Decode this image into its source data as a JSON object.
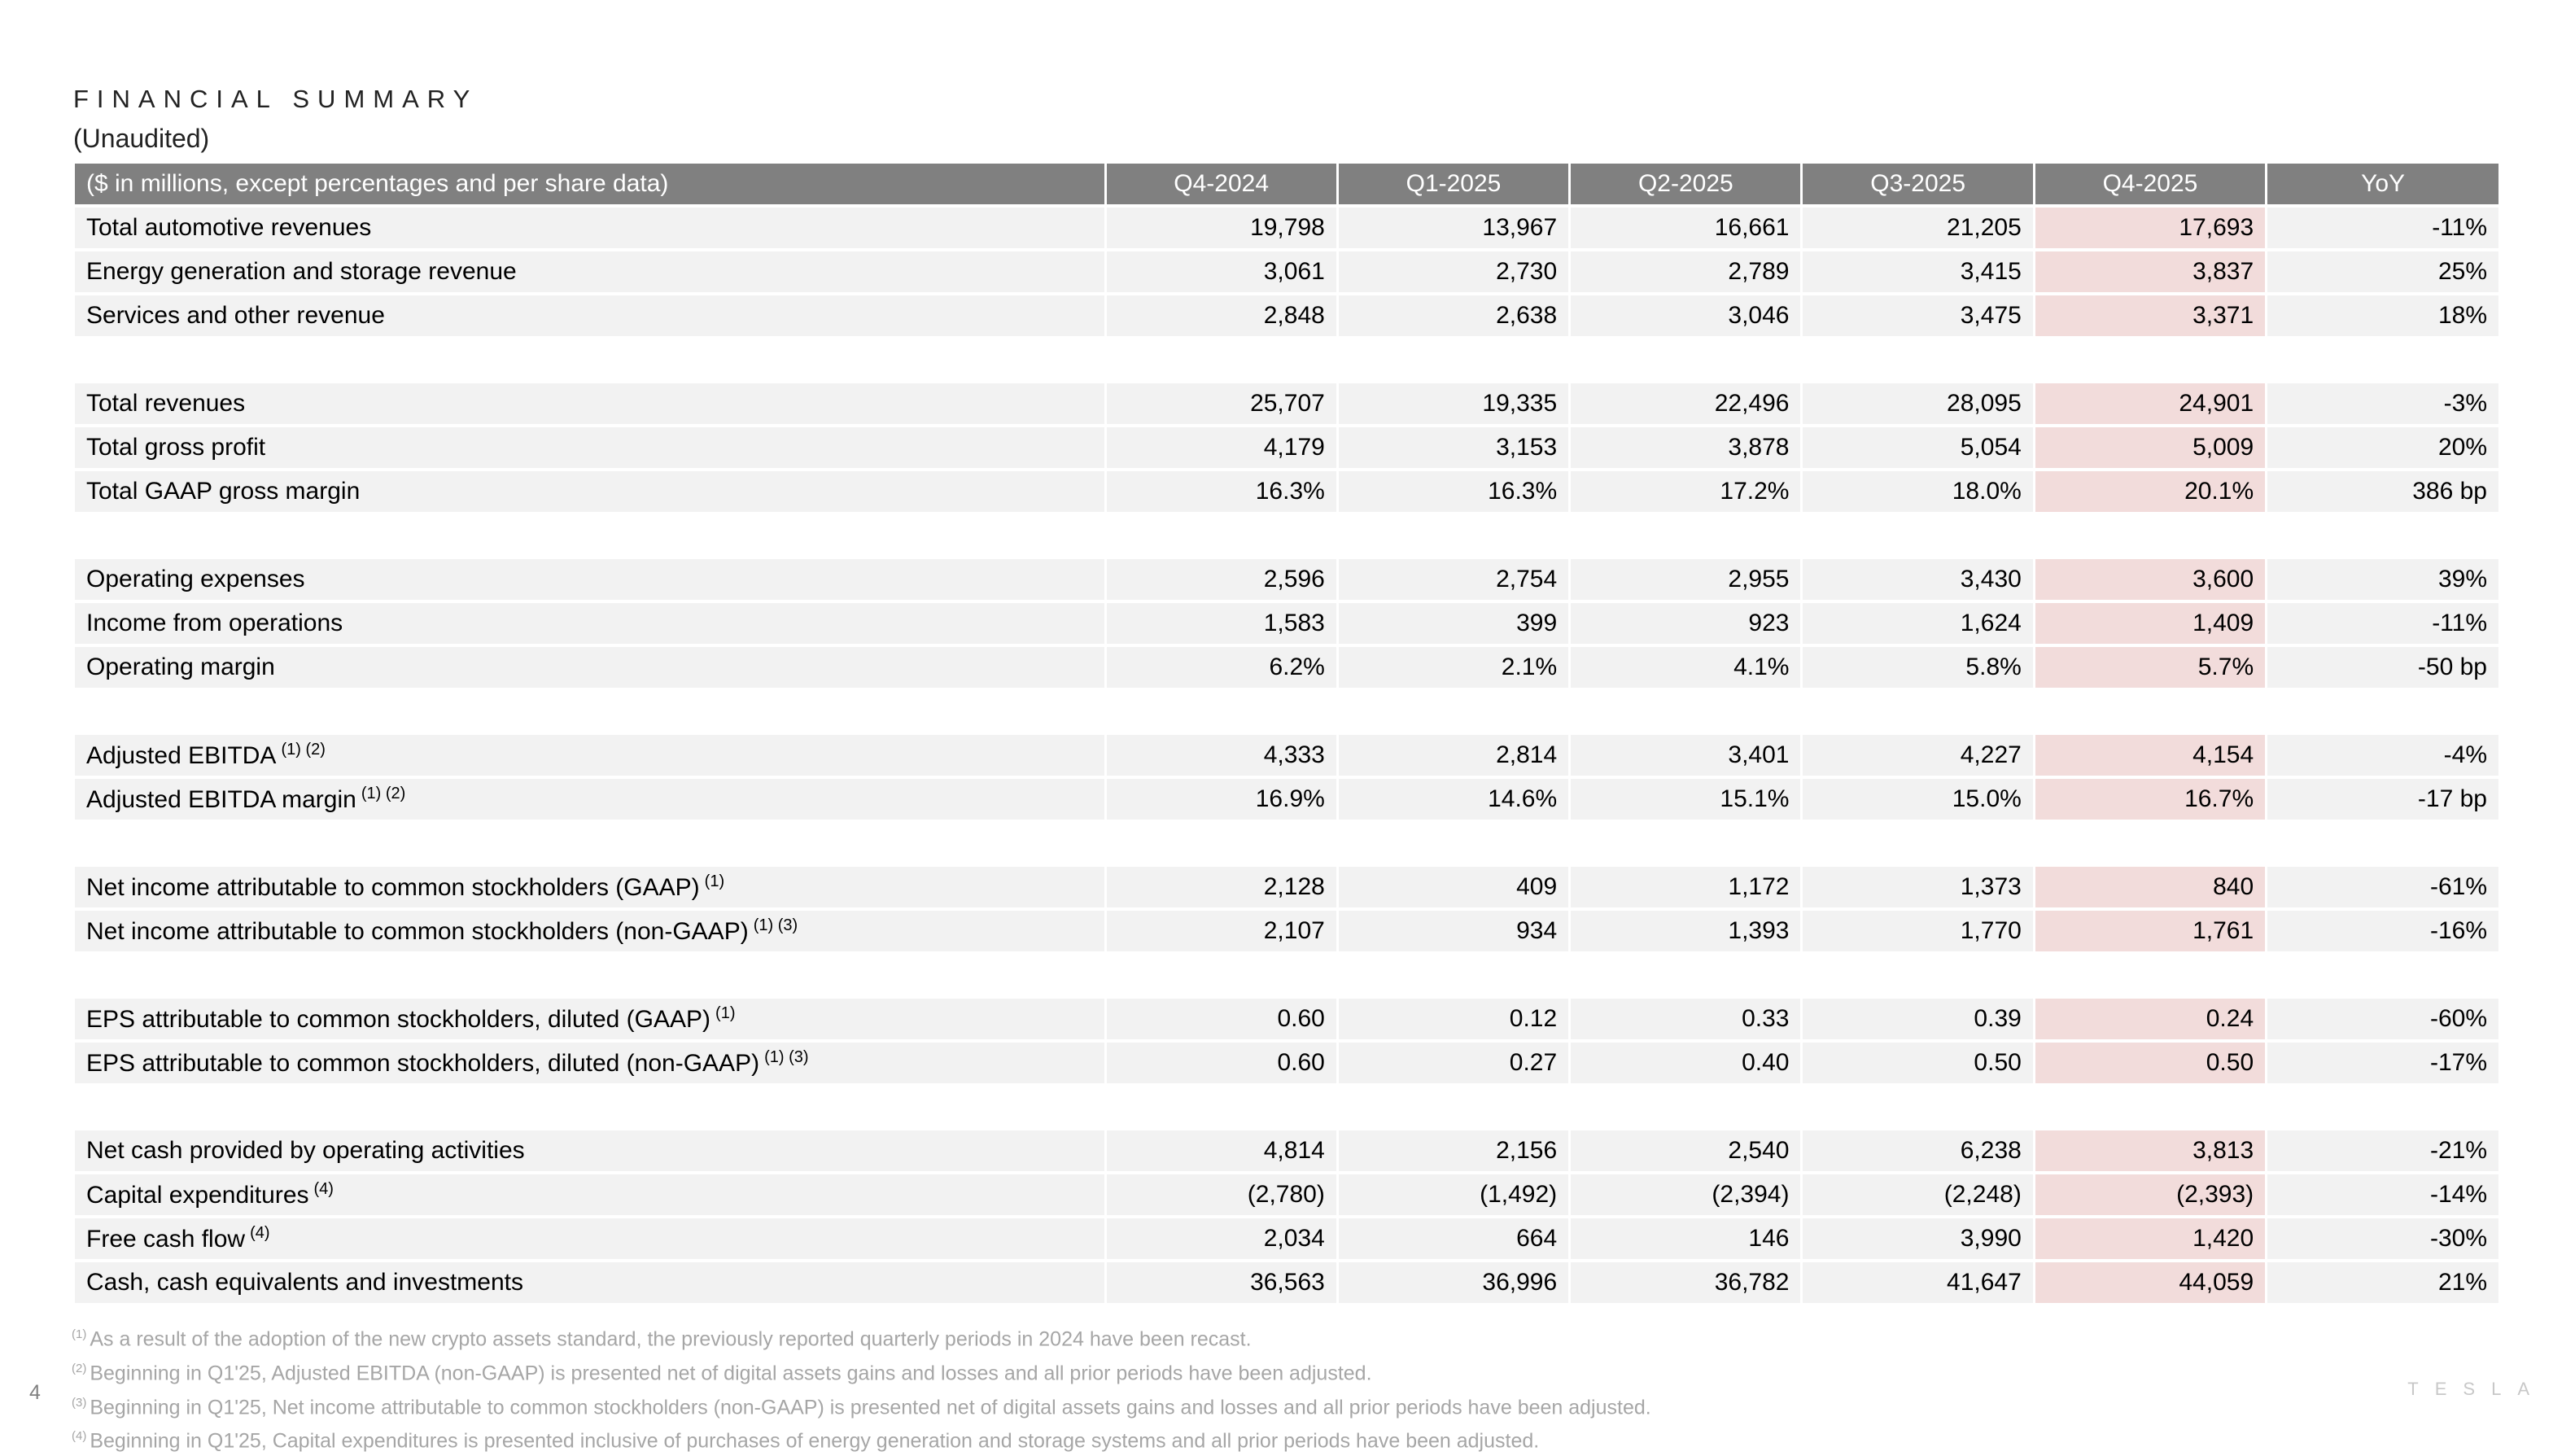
{
  "header": {
    "title": "FINANCIAL SUMMARY",
    "subtitle": "(Unaudited)"
  },
  "table": {
    "columns": [
      "($ in millions, except percentages and per share data)",
      "Q4-2024",
      "Q1-2025",
      "Q2-2025",
      "Q3-2025",
      "Q4-2025",
      "YoY"
    ],
    "groups": [
      [
        {
          "label": "Total automotive revenues",
          "notes": [],
          "values": [
            "19,798",
            "13,967",
            "16,661",
            "21,205",
            "17,693",
            "-11%"
          ]
        },
        {
          "label": "Energy generation and storage revenue",
          "notes": [],
          "values": [
            "3,061",
            "2,730",
            "2,789",
            "3,415",
            "3,837",
            "25%"
          ]
        },
        {
          "label": "Services and other revenue",
          "notes": [],
          "values": [
            "2,848",
            "2,638",
            "3,046",
            "3,475",
            "3,371",
            "18%"
          ]
        }
      ],
      [
        {
          "label": "Total revenues",
          "notes": [],
          "values": [
            "25,707",
            "19,335",
            "22,496",
            "28,095",
            "24,901",
            "-3%"
          ]
        },
        {
          "label": "Total gross profit",
          "notes": [],
          "values": [
            "4,179",
            "3,153",
            "3,878",
            "5,054",
            "5,009",
            "20%"
          ]
        },
        {
          "label": "Total GAAP gross margin",
          "notes": [],
          "values": [
            "16.3%",
            "16.3%",
            "17.2%",
            "18.0%",
            "20.1%",
            "386 bp"
          ]
        }
      ],
      [
        {
          "label": "Operating expenses",
          "notes": [],
          "values": [
            "2,596",
            "2,754",
            "2,955",
            "3,430",
            "3,600",
            "39%"
          ]
        },
        {
          "label": "Income from operations",
          "notes": [],
          "values": [
            "1,583",
            "399",
            "923",
            "1,624",
            "1,409",
            "-11%"
          ]
        },
        {
          "label": "Operating margin",
          "notes": [],
          "values": [
            "6.2%",
            "2.1%",
            "4.1%",
            "5.8%",
            "5.7%",
            "-50 bp"
          ]
        }
      ],
      [
        {
          "label": "Adjusted EBITDA",
          "notes": [
            "(1)",
            "(2)"
          ],
          "values": [
            "4,333",
            "2,814",
            "3,401",
            "4,227",
            "4,154",
            "-4%"
          ]
        },
        {
          "label": "Adjusted EBITDA margin",
          "notes": [
            "(1)",
            "(2)"
          ],
          "values": [
            "16.9%",
            "14.6%",
            "15.1%",
            "15.0%",
            "16.7%",
            "-17 bp"
          ]
        }
      ],
      [
        {
          "label": "Net income attributable to common stockholders (GAAP)",
          "notes": [
            "(1)"
          ],
          "values": [
            "2,128",
            "409",
            "1,172",
            "1,373",
            "840",
            "-61%"
          ]
        },
        {
          "label": "Net income attributable to common stockholders (non-GAAP)",
          "notes": [
            "(1)",
            "(3)"
          ],
          "values": [
            "2,107",
            "934",
            "1,393",
            "1,770",
            "1,761",
            "-16%"
          ]
        }
      ],
      [
        {
          "label": "EPS attributable to common stockholders, diluted (GAAP)",
          "notes": [
            "(1)"
          ],
          "values": [
            "0.60",
            "0.12",
            "0.33",
            "0.39",
            "0.24",
            "-60%"
          ]
        },
        {
          "label": "EPS attributable to common stockholders, diluted (non-GAAP)",
          "notes": [
            "(1)",
            "(3)"
          ],
          "values": [
            "0.60",
            "0.27",
            "0.40",
            "0.50",
            "0.50",
            "-17%"
          ]
        }
      ],
      [
        {
          "label": "Net cash provided by operating activities",
          "notes": [],
          "values": [
            "4,814",
            "2,156",
            "2,540",
            "6,238",
            "3,813",
            "-21%"
          ]
        },
        {
          "label": "Capital expenditures",
          "notes": [
            "(4)"
          ],
          "values": [
            "(2,780)",
            "(1,492)",
            "(2,394)",
            "(2,248)",
            "(2,393)",
            "-14%"
          ]
        },
        {
          "label": "Free cash flow",
          "notes": [
            "(4)"
          ],
          "values": [
            "2,034",
            "664",
            "146",
            "3,990",
            "1,420",
            "-30%"
          ]
        },
        {
          "label": "Cash, cash equivalents and investments",
          "notes": [],
          "values": [
            "36,563",
            "36,996",
            "36,782",
            "41,647",
            "44,059",
            "21%"
          ]
        }
      ]
    ]
  },
  "footnotes": [
    {
      "marker": "(1)",
      "text": "As a result of the adoption of the new crypto assets standard, the previously reported quarterly periods in 2024 have been recast."
    },
    {
      "marker": "(2)",
      "text": "Beginning in Q1'25, Adjusted EBITDA (non-GAAP) is presented net of digital assets gains and losses and all prior periods have been adjusted."
    },
    {
      "marker": "(3)",
      "text": "Beginning in Q1'25, Net income attributable to common stockholders (non-GAAP) is presented net of digital assets gains and losses and all prior periods have been adjusted."
    },
    {
      "marker": "(4)",
      "text": "Beginning in Q1'25, Capital expenditures is presented inclusive of purchases of energy generation and storage systems and all prior periods have been adjusted."
    }
  ],
  "page_number": "4",
  "logo": "TESLA"
}
